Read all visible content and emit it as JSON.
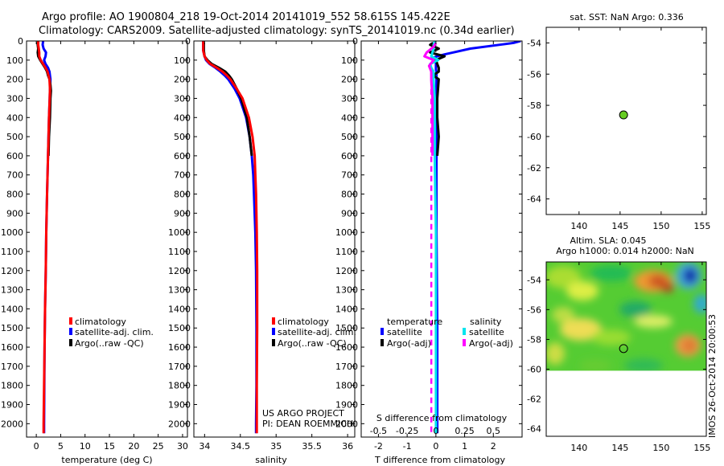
{
  "header": {
    "line1": "Argo profile: AO 1900804_218 19-Oct-2014 20141019_552 58.615S 145.422E",
    "line2": "Climatology: CARS2009. Satellite-adjusted climatology: synTS_20141019.nc (0.34d earlier)"
  },
  "stamp": "IMOS 26-Oct-2014 20:00:53",
  "colors": {
    "climatology": "#ff0000",
    "satellite": "#0000ff",
    "argo": "#000000",
    "sal_satellite": "#00e5ee",
    "sal_argo": "#ff00ff",
    "argo_dot": "#66cc22"
  },
  "depth_axis": {
    "ticks": [
      0,
      100,
      200,
      300,
      400,
      500,
      600,
      700,
      800,
      900,
      1000,
      1100,
      1200,
      1300,
      1400,
      1500,
      1600,
      1700,
      1800,
      1900,
      2000
    ],
    "tick_labels": [
      "0",
      "100",
      "200",
      "300",
      "400",
      "500",
      "600",
      "700",
      "800",
      "900",
      "1000",
      "1100",
      "1200",
      "1300",
      "1400",
      "1500",
      "1600",
      "1700",
      "1800",
      "1900",
      "2000"
    ],
    "ylim": [
      0,
      2070
    ]
  },
  "legend": {
    "climatology": "climatology",
    "satellite_adj": "satellite-adj. clim.",
    "argo": "Argo(..raw -QC)",
    "temperature_head": "temperature",
    "salinity_head": "salinity",
    "satellite": "satellite",
    "argo_adj": "Argo(-adj)"
  },
  "credits": {
    "project": "US ARGO PROJECT",
    "pi": "PI: DEAN ROEMMICH"
  },
  "chart_data": [
    {
      "type": "line",
      "name": "temperature-profile",
      "xlabel": "temperature (deg C)",
      "ylabel": "depth",
      "xlim": [
        -2,
        31
      ],
      "ylim": [
        0,
        2070
      ],
      "x_ticks": [
        0,
        5,
        10,
        15,
        20,
        25,
        30
      ],
      "x_tick_labels": [
        "0",
        "5",
        "10",
        "15",
        "20",
        "25",
        "30"
      ],
      "series": [
        {
          "name": "satellite-adj. clim.",
          "color": "#0000ff",
          "depth": [
            0,
            20,
            40,
            60,
            80,
            100,
            120,
            140,
            160,
            180,
            200,
            250,
            300,
            400,
            500,
            600,
            800,
            1000,
            1200,
            1400,
            1600,
            1800,
            2000,
            2050
          ],
          "values": [
            1.4,
            1.3,
            1.5,
            2.0,
            1.9,
            1.6,
            1.9,
            2.4,
            2.7,
            2.8,
            2.9,
            2.8,
            2.75,
            2.6,
            2.5,
            2.4,
            2.2,
            2.05,
            1.95,
            1.8,
            1.7,
            1.65,
            1.6,
            1.6
          ]
        },
        {
          "name": "Argo(..raw -QC)",
          "color": "#000000",
          "depth": [
            5,
            20,
            40,
            60,
            80,
            100,
            120,
            140,
            160,
            180,
            200,
            230,
            260,
            300,
            400,
            500,
            600
          ],
          "values": [
            0.3,
            0.3,
            0.4,
            0.3,
            0.4,
            0.8,
            1.3,
            1.8,
            2.2,
            2.4,
            2.7,
            2.9,
            3.0,
            2.9,
            2.8,
            2.6,
            2.5
          ]
        },
        {
          "name": "climatology",
          "color": "#ff0000",
          "depth": [
            0,
            20,
            40,
            60,
            80,
            100,
            120,
            140,
            160,
            180,
            200,
            250,
            300,
            400,
            500,
            600,
            800,
            1000,
            1200,
            1400,
            1600,
            1800,
            2000,
            2050
          ],
          "values": [
            0.4,
            0.4,
            0.5,
            0.6,
            0.6,
            0.9,
            1.4,
            1.9,
            2.3,
            2.5,
            2.7,
            2.8,
            2.75,
            2.6,
            2.5,
            2.4,
            2.2,
            2.05,
            1.95,
            1.8,
            1.7,
            1.6,
            1.5,
            1.5
          ]
        }
      ]
    },
    {
      "type": "line",
      "name": "salinity-profile",
      "xlabel": "salinity",
      "ylabel": "depth",
      "xlim": [
        33.85,
        36.1
      ],
      "ylim": [
        0,
        2070
      ],
      "x_ticks": [
        34,
        34.5,
        35,
        35.5,
        36
      ],
      "x_tick_labels": [
        "34",
        "34.5",
        "35",
        "35.5",
        "36"
      ],
      "series": [
        {
          "name": "satellite-adj. clim.",
          "color": "#0000ff",
          "depth": [
            0,
            50,
            80,
            100,
            120,
            140,
            160,
            180,
            200,
            250,
            300,
            400,
            500,
            600,
            700,
            800,
            1000,
            1200,
            1500,
            1800,
            2000,
            2050
          ],
          "values": [
            33.98,
            33.98,
            34.0,
            34.02,
            34.07,
            34.15,
            34.22,
            34.28,
            34.33,
            34.42,
            34.49,
            34.58,
            34.63,
            34.66,
            34.68,
            34.69,
            34.71,
            34.72,
            34.725,
            34.725,
            34.72,
            34.72
          ]
        },
        {
          "name": "Argo(..raw -QC)",
          "color": "#000000",
          "depth": [
            10,
            50,
            80,
            100,
            120,
            140,
            160,
            180,
            200,
            250,
            300,
            400,
            500,
            600
          ],
          "values": [
            33.99,
            33.99,
            34.0,
            34.04,
            34.1,
            34.2,
            34.29,
            34.34,
            34.38,
            34.45,
            34.51,
            34.59,
            34.63,
            34.66
          ]
        },
        {
          "name": "climatology",
          "color": "#ff0000",
          "depth": [
            0,
            50,
            80,
            100,
            120,
            140,
            160,
            180,
            200,
            250,
            300,
            400,
            500,
            600,
            700,
            800,
            1000,
            1200,
            1500,
            1800,
            2000,
            2050
          ],
          "values": [
            33.98,
            33.98,
            34.0,
            34.03,
            34.08,
            34.17,
            34.25,
            34.31,
            34.36,
            34.45,
            34.53,
            34.62,
            34.67,
            34.7,
            34.71,
            34.72,
            34.73,
            34.735,
            34.735,
            34.73,
            34.73,
            34.73
          ]
        }
      ]
    },
    {
      "type": "line",
      "name": "difference-from-climatology",
      "xlabel": "T difference from climatology",
      "xlabel_top": "S difference from climatology",
      "ylabel": "depth",
      "xlim": [
        -2.6,
        3.0
      ],
      "ylim": [
        0,
        2070
      ],
      "x_ticks": [
        -2,
        -1,
        0,
        1,
        2
      ],
      "x_tick_labels": [
        "-2",
        "-1",
        "0",
        "1",
        "2"
      ],
      "s_ticks": [
        -0.5,
        -0.25,
        0,
        0.25,
        0.5
      ],
      "s_tick_labels": [
        "-0.5",
        "-0.25",
        "0",
        "0.25",
        "0.5"
      ],
      "s_scale_per_T": 4,
      "series": [
        {
          "name": "T satellite",
          "color": "#0000ff",
          "depth": [
            0,
            10,
            20,
            40,
            60,
            70,
            80,
            90,
            100,
            110,
            120,
            130,
            140,
            150,
            160,
            200,
            300,
            400,
            500,
            600,
            800,
            1000,
            1500,
            2000,
            2050
          ],
          "values": [
            2.95,
            2.7,
            2.2,
            1.2,
            0.6,
            0.3,
            0.05,
            -0.15,
            -0.1,
            0.0,
            0.0,
            0.0,
            0.0,
            0.0,
            0.02,
            0.02,
            0.02,
            0.02,
            0.02,
            0.02,
            0.02,
            0.02,
            0.05,
            0.05,
            0.05
          ]
        },
        {
          "name": "T Argo(-adj)",
          "color": "#000000",
          "depth": [
            10,
            20,
            40,
            60,
            80,
            100,
            120,
            140,
            160,
            180,
            200,
            300,
            400,
            500,
            600
          ],
          "values": [
            -0.1,
            -0.2,
            0.1,
            -0.2,
            0.3,
            0.0,
            0.05,
            0.1,
            0.1,
            -0.1,
            0.1,
            0.05,
            0.05,
            0.1,
            0.05
          ]
        },
        {
          "name": "S satellite",
          "color": "#00e5ee",
          "depth": [
            0,
            20,
            40,
            60,
            80,
            100,
            120,
            140,
            160,
            200,
            300,
            400,
            600,
            800,
            1000,
            1500,
            2000,
            2050
          ],
          "values": [
            -0.01,
            -0.02,
            -0.02,
            -0.03,
            -0.04,
            0.02,
            -0.05,
            -0.04,
            -0.02,
            -0.02,
            -0.01,
            -0.01,
            -0.01,
            -0.005,
            0.0,
            0.0,
            0.0,
            0.0
          ]
        },
        {
          "name": "S Argo(-adj)",
          "color": "#ff00ff",
          "depth": [
            10,
            30,
            60,
            80,
            100,
            130,
            160,
            200,
            300,
            400,
            500,
            600
          ],
          "values": [
            0.0,
            -0.02,
            -0.08,
            -0.1,
            -0.02,
            -0.06,
            -0.04,
            -0.04,
            -0.03,
            -0.03,
            -0.03,
            -0.03
          ]
        }
      ],
      "dashed_line": {
        "depth": [
          150,
          2050
        ],
        "s_value": -0.04
      }
    },
    {
      "type": "scatter",
      "name": "sst-map",
      "title": "sat. SST: NaN Argo: 0.336",
      "xlim": [
        136,
        155.5
      ],
      "ylim": [
        -65,
        -53
      ],
      "x_ticks": [
        140,
        145,
        150,
        155
      ],
      "x_tick_labels": [
        "140",
        "145",
        "150",
        "155"
      ],
      "y_ticks": [
        -54,
        -56,
        -58,
        -60,
        -62,
        -64
      ],
      "y_tick_labels": [
        "-54",
        "-56",
        "-58",
        "-60",
        "-62",
        "-64"
      ],
      "points": [
        {
          "lon": 145.422,
          "lat": -58.615
        }
      ]
    },
    {
      "type": "heatmap",
      "name": "sla-map",
      "title_line1": "Altim. SLA: 0.045",
      "title_line2": "Argo h1000: 0.014 h2000: NaN",
      "xlim": [
        136,
        155.5
      ],
      "ylim": [
        -64.5,
        -52.8
      ],
      "x_ticks": [
        140,
        145,
        150,
        155
      ],
      "x_tick_labels": [
        "140",
        "145",
        "150",
        "155"
      ],
      "y_ticks": [
        -54,
        -56,
        -58,
        -60,
        -62,
        -64
      ],
      "y_tick_labels": [
        "-54",
        "-56",
        "-58",
        "-60",
        "-62",
        "-64"
      ],
      "data_bottom_lat": -60.1,
      "points": [
        {
          "lon": 145.422,
          "lat": -58.615
        }
      ]
    }
  ]
}
